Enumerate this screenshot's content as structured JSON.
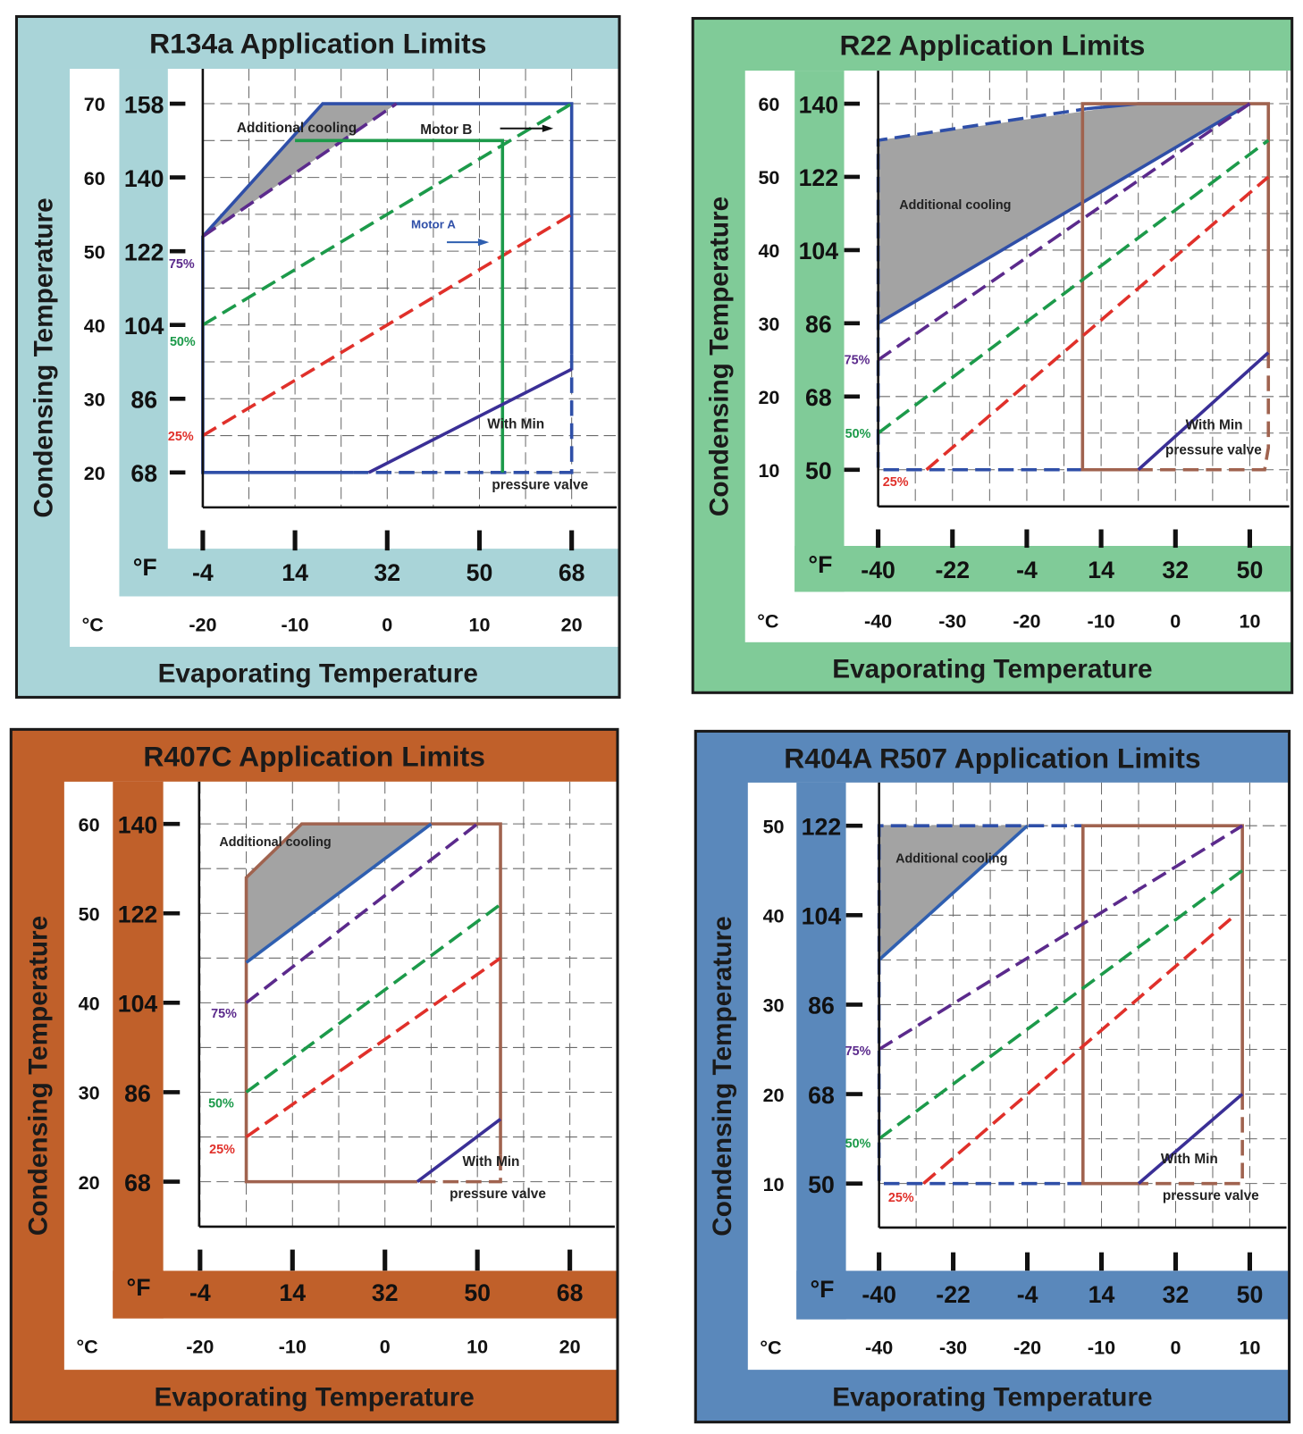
{
  "chart_data": [
    {
      "type": "line",
      "title": "R134a  Application Limits",
      "xlabel": "Evaporating Temperature",
      "ylabel": "Condensing Temperature",
      "unit_F": "°F",
      "unit_C": "°C",
      "panel_color": "#a9d4d8",
      "grid": true,
      "x_ticks_F": [
        "-4",
        "14",
        "32",
        "50",
        "68"
      ],
      "x_ticks_C": [
        "-20",
        "-10",
        "0",
        "10",
        "20"
      ],
      "y_ticks_C": [
        "70",
        "60",
        "50",
        "40",
        "30",
        "20"
      ],
      "y_ticks_F": [
        "158",
        "140",
        "122",
        "104",
        "86",
        "68"
      ],
      "xlim_C": [
        -20,
        20
      ],
      "ylim_C": [
        20,
        70
      ],
      "regions": [
        {
          "name": "Additional cooling",
          "fill": "#a3a3a3",
          "points": [
            [
              -20,
              52
            ],
            [
              -7,
              70
            ],
            [
              1,
              70
            ]
          ]
        }
      ],
      "series": [
        {
          "color": "#2f4fa8",
          "style": "solid",
          "points": [
            [
              -3.7,
              20
            ],
            [
              -20,
              20
            ],
            [
              -20,
              52
            ],
            [
              -7,
              70
            ],
            [
              20,
              70
            ],
            [
              20,
              36
            ]
          ]
        },
        {
          "color": "#2f4fa8",
          "style": "dashed",
          "points": [
            [
              20,
              36
            ],
            [
              20,
              20
            ],
            [
              -3.7,
              20
            ]
          ]
        },
        {
          "name": "75%",
          "color": "#5b2a8c",
          "style": "dashed",
          "points": [
            [
              -20,
              52
            ],
            [
              1,
              70
            ]
          ]
        },
        {
          "name": "50%",
          "color": "#1c9a4a",
          "style": "dashed",
          "points": [
            [
              -20,
              40
            ],
            [
              20,
              70
            ]
          ]
        },
        {
          "name": "25%",
          "color": "#e0302a",
          "style": "dashed",
          "points": [
            [
              -20,
              25
            ],
            [
              20,
              55
            ]
          ]
        },
        {
          "color": "#1c9a4a",
          "style": "solid",
          "points": [
            [
              -10,
              65
            ],
            [
              12.5,
              65
            ],
            [
              12.5,
              20
            ]
          ]
        },
        {
          "color": "#3a2f96",
          "style": "solid",
          "points": [
            [
              -2,
              20
            ],
            [
              20,
              34
            ]
          ]
        }
      ],
      "annotations": [
        "Additional cooling",
        "Motor B",
        "Motor A",
        "With Min",
        "pressure valve"
      ]
    },
    {
      "type": "line",
      "title": "R22  Application Limits",
      "xlabel": "Evaporating Temperature",
      "ylabel": "Condensing Temperature",
      "unit_F": "°F",
      "unit_C": "°C",
      "panel_color": "#80cb98",
      "grid": true,
      "x_ticks_F": [
        "-40",
        "-22",
        "-4",
        "14",
        "32",
        "50"
      ],
      "x_ticks_C": [
        "-40",
        "-30",
        "-20",
        "-10",
        "0",
        "10"
      ],
      "y_ticks_C": [
        "60",
        "50",
        "40",
        "30",
        "20",
        "10"
      ],
      "y_ticks_F": [
        "140",
        "122",
        "104",
        "86",
        "68",
        "50"
      ],
      "xlim_C": [
        -40,
        10
      ],
      "ylim_C": [
        10,
        60
      ],
      "regions": [
        {
          "name": "Additional cooling",
          "fill": "#a3a3a3",
          "points": [
            [
              -40,
              55
            ],
            [
              -5,
              60
            ],
            [
              10,
              60
            ],
            [
              -40,
              30
            ]
          ]
        }
      ],
      "series": [
        {
          "color": "#2f4fa8",
          "style": "dashed",
          "points": [
            [
              -12.5,
              10
            ],
            [
              -40,
              10
            ],
            [
              -40,
              55
            ],
            [
              -12,
              59.3
            ]
          ]
        },
        {
          "color": "#2f4fa8",
          "style": "solid",
          "points": [
            [
              -12,
              59.3
            ],
            [
              -5,
              60
            ],
            [
              10,
              60
            ]
          ]
        },
        {
          "color": "#2f4fa8",
          "style": "solid",
          "points": [
            [
              -40,
              30
            ],
            [
              10,
              60
            ]
          ]
        },
        {
          "color": "#a0634f",
          "style": "solid",
          "points": [
            [
              -5,
              10
            ],
            [
              -12.5,
              10
            ],
            [
              -12.5,
              60
            ],
            [
              12.5,
              60
            ],
            [
              12.5,
              26
            ]
          ]
        },
        {
          "color": "#a0634f",
          "style": "dashed",
          "points": [
            [
              12.5,
              26
            ],
            [
              12.5,
              13
            ],
            [
              12,
              10
            ],
            [
              -5,
              10
            ]
          ]
        },
        {
          "name": "75%",
          "color": "#5b2a8c",
          "style": "dashed",
          "points": [
            [
              -40,
              25
            ],
            [
              10,
              60
            ]
          ]
        },
        {
          "name": "50%",
          "color": "#1c9a4a",
          "style": "dashed",
          "points": [
            [
              -40,
              15
            ],
            [
              12.5,
              55
            ]
          ]
        },
        {
          "name": "25%",
          "color": "#e0302a",
          "style": "dashed",
          "points": [
            [
              -33.5,
              10
            ],
            [
              12.5,
              50
            ]
          ]
        },
        {
          "color": "#3a2f96",
          "style": "solid",
          "points": [
            [
              -5,
              10
            ],
            [
              12.5,
              26
            ]
          ]
        }
      ],
      "annotations": [
        "Additional cooling",
        "With Min",
        "pressure valve"
      ]
    },
    {
      "type": "line",
      "title": "R407C  Application Limits",
      "xlabel": "Evaporating Temperature",
      "ylabel": "Condensing Temperature",
      "unit_F": "°F",
      "unit_C": "°C",
      "panel_color": "#c0602a",
      "grid": true,
      "x_ticks_F": [
        "-4",
        "14",
        "32",
        "50",
        "68"
      ],
      "x_ticks_C": [
        "-20",
        "-10",
        "0",
        "10",
        "20"
      ],
      "y_ticks_C": [
        "60",
        "50",
        "40",
        "30",
        "20"
      ],
      "y_ticks_F": [
        "140",
        "122",
        "104",
        "86",
        "68"
      ],
      "xlim_C": [
        -20,
        20
      ],
      "ylim_C": [
        20,
        60
      ],
      "regions": [
        {
          "name": "Additional cooling",
          "fill": "#a3a3a3",
          "points": [
            [
              -15,
              54
            ],
            [
              -9,
              60
            ],
            [
              5,
              60
            ],
            [
              -15,
              44.5
            ]
          ]
        }
      ],
      "series": [
        {
          "color": "#a0634f",
          "style": "solid",
          "points": [
            [
              3.5,
              20
            ],
            [
              -15,
              20
            ],
            [
              -15,
              54
            ],
            [
              -9,
              60
            ],
            [
              12.5,
              60
            ],
            [
              12.5,
              23
            ]
          ]
        },
        {
          "color": "#a0634f",
          "style": "dashed",
          "points": [
            [
              12.5,
              23
            ],
            [
              12.5,
              20
            ],
            [
              3.5,
              20
            ]
          ]
        },
        {
          "color": "#2f5fb0",
          "style": "solid",
          "points": [
            [
              -15,
              44.5
            ],
            [
              5,
              60
            ]
          ]
        },
        {
          "name": "75%",
          "color": "#5b2a8c",
          "style": "dashed",
          "points": [
            [
              -15,
              40
            ],
            [
              10,
              60
            ]
          ]
        },
        {
          "name": "50%",
          "color": "#1c9a4a",
          "style": "dashed",
          "points": [
            [
              -15,
              30
            ],
            [
              12.5,
              51
            ]
          ]
        },
        {
          "name": "25%",
          "color": "#e0302a",
          "style": "dashed",
          "points": [
            [
              -15,
              25
            ],
            [
              12.5,
              45
            ]
          ]
        },
        {
          "color": "#3a2f96",
          "style": "solid",
          "points": [
            [
              3.5,
              20
            ],
            [
              12.5,
              27
            ]
          ]
        }
      ],
      "annotations": [
        "Additional cooling",
        "With Min",
        "pressure valve"
      ]
    },
    {
      "type": "line",
      "title": "R404A R507  Application Limits",
      "xlabel": "Evaporating Temperature",
      "ylabel": "Condensing Temperature",
      "unit_F": "°F",
      "unit_C": "°C",
      "panel_color": "#5a88bb",
      "grid": true,
      "x_ticks_F": [
        "-40",
        "-22",
        "-4",
        "14",
        "32",
        "50"
      ],
      "x_ticks_C": [
        "-40",
        "-30",
        "-20",
        "-10",
        "0",
        "10"
      ],
      "y_ticks_C": [
        "50",
        "40",
        "30",
        "20",
        "10"
      ],
      "y_ticks_F": [
        "122",
        "104",
        "86",
        "68",
        "50"
      ],
      "xlim_C": [
        -40,
        10
      ],
      "ylim_C": [
        10,
        50
      ],
      "regions": [
        {
          "name": "Additional cooling",
          "fill": "#a3a3a3",
          "points": [
            [
              -40,
              50
            ],
            [
              -20,
              50
            ],
            [
              -40,
              35
            ]
          ]
        }
      ],
      "series": [
        {
          "color": "#2f4fa8",
          "style": "dashed",
          "points": [
            [
              -12.5,
              10
            ],
            [
              -40,
              10
            ],
            [
              -40,
              50
            ],
            [
              -12.5,
              50
            ]
          ]
        },
        {
          "color": "#2f5fb0",
          "style": "solid",
          "points": [
            [
              -40,
              35
            ],
            [
              -20,
              50
            ]
          ]
        },
        {
          "color": "#a0634f",
          "style": "solid",
          "points": [
            [
              -5,
              10
            ],
            [
              -12.5,
              10
            ],
            [
              -12.5,
              50
            ],
            [
              9,
              50
            ],
            [
              9,
              20
            ]
          ]
        },
        {
          "color": "#a0634f",
          "style": "dashed",
          "points": [
            [
              9,
              20
            ],
            [
              9,
              10
            ],
            [
              -5,
              10
            ]
          ]
        },
        {
          "name": "75%",
          "color": "#5b2a8c",
          "style": "dashed",
          "points": [
            [
              -40,
              25
            ],
            [
              9,
              50
            ]
          ]
        },
        {
          "name": "50%",
          "color": "#1c9a4a",
          "style": "dashed",
          "points": [
            [
              -40,
              15
            ],
            [
              9,
              45
            ]
          ]
        },
        {
          "name": "25%",
          "color": "#e0302a",
          "style": "dashed",
          "points": [
            [
              -34,
              10
            ],
            [
              8,
              40
            ]
          ]
        },
        {
          "color": "#3a2f96",
          "style": "solid",
          "points": [
            [
              -5,
              10
            ],
            [
              9,
              20
            ]
          ]
        }
      ],
      "annotations": [
        "Additional cooling",
        "With Min",
        "pressure valve"
      ]
    }
  ]
}
